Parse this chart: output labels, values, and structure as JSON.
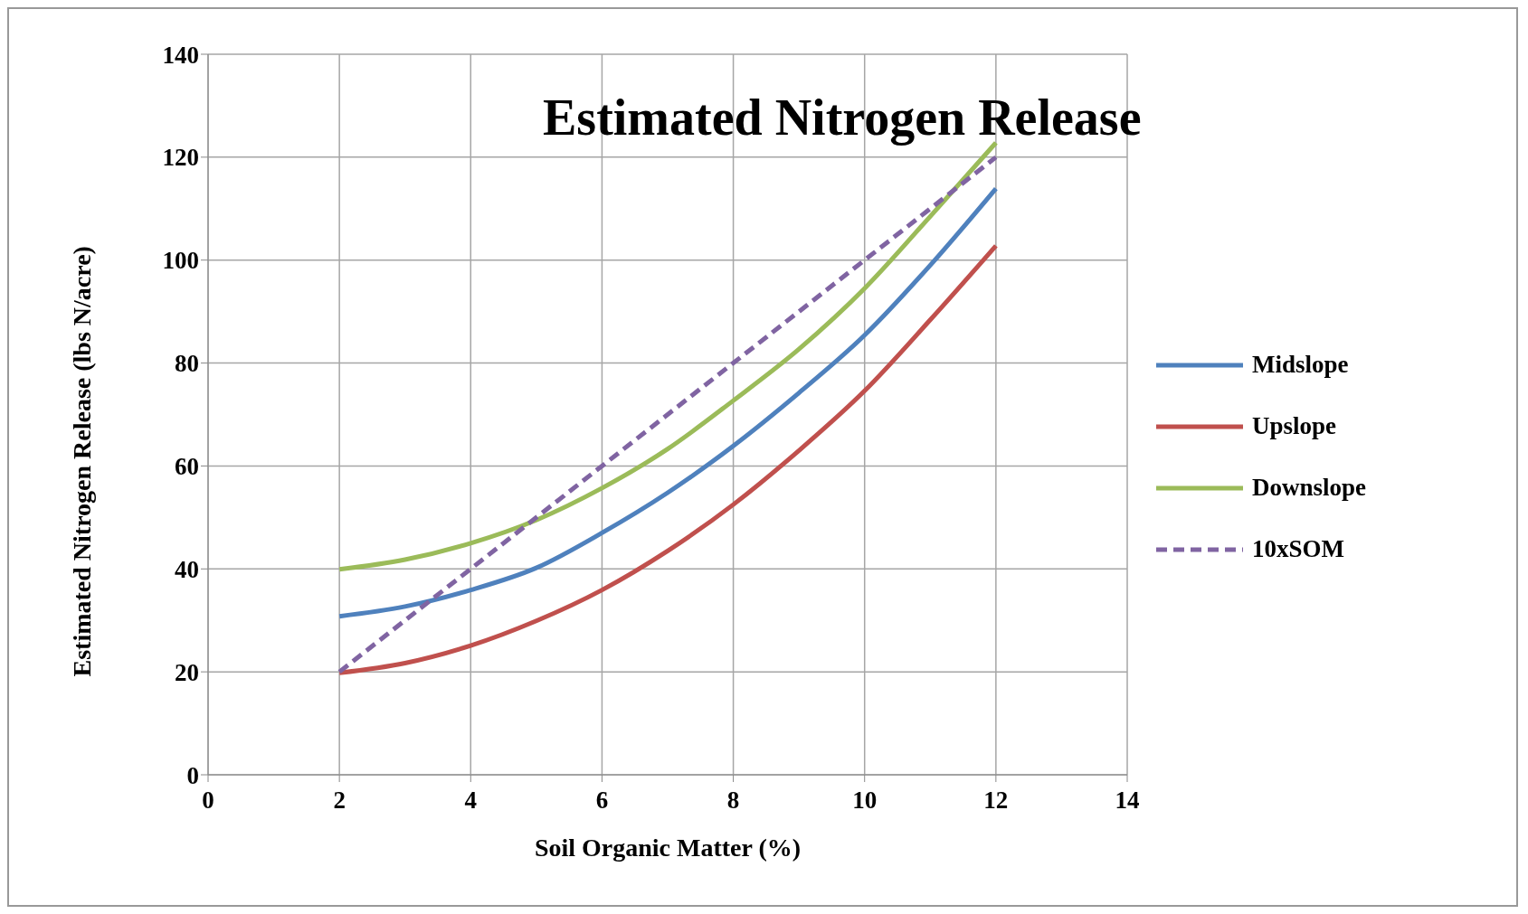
{
  "chart_data": {
    "type": "line",
    "title": "Estimated Nitrogen Release",
    "xlabel": "Soil Organic Matter (%)",
    "ylabel": "Estimated Nitrogen Release (lbs N/acre)",
    "x": [
      2,
      3,
      4,
      5,
      6,
      7,
      8,
      9,
      10,
      11,
      12
    ],
    "series": [
      {
        "name": "Midslope",
        "color": "#4f81bd",
        "values": [
          30.8,
          32.7,
          35.9,
          40.2,
          47,
          54.8,
          63.9,
          74.2,
          85.4,
          99,
          113.9
        ]
      },
      {
        "name": "Upslope",
        "color": "#c0504d",
        "values": [
          19.8,
          21.7,
          25.1,
          29.9,
          35.9,
          43.5,
          52.5,
          63,
          74.6,
          88.4,
          102.8
        ]
      },
      {
        "name": "Downslope",
        "color": "#9bbb59",
        "values": [
          39.9,
          41.8,
          45,
          49.5,
          55.7,
          63.3,
          72.7,
          82.7,
          94.5,
          108.5,
          122.8
        ]
      },
      {
        "name": "10xSOM",
        "color": "#8064a2",
        "line_style": "dashed",
        "x": [
          2,
          4,
          6,
          8,
          10,
          12
        ],
        "values": [
          20,
          40,
          60,
          80,
          100,
          120
        ]
      }
    ],
    "xlim": [
      0,
      14
    ],
    "xticks": [
      0,
      2,
      4,
      6,
      8,
      10,
      12,
      14
    ],
    "ylim": [
      0,
      140
    ],
    "yticks": [
      0,
      20,
      40,
      60,
      80,
      100,
      120,
      140
    ],
    "grid": true,
    "legend": "right",
    "marker": "none",
    "line_style": "solid"
  }
}
